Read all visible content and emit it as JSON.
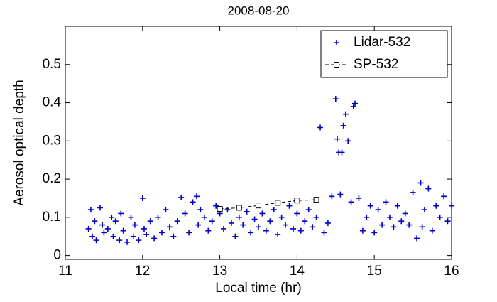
{
  "chart_data": {
    "type": "scatter",
    "title": "2008-08-20",
    "x_label": "Local time (hr)",
    "y_label": "Aerosol optical depth",
    "xlim": [
      11,
      16
    ],
    "ylim": [
      -0.01,
      0.6
    ],
    "xticks": [
      11,
      12,
      13,
      14,
      15,
      16
    ],
    "yticks": [
      0,
      0.1,
      0.2,
      0.3,
      0.4,
      0.5
    ],
    "legend": "northeast",
    "series": [
      {
        "name": "Lidar-532",
        "color": "#0000cc",
        "marker": "plus",
        "x": [
          11.3,
          11.33,
          11.35,
          11.38,
          11.4,
          11.45,
          11.48,
          11.5,
          11.55,
          11.6,
          11.62,
          11.65,
          11.7,
          11.72,
          11.75,
          11.8,
          11.85,
          11.88,
          11.9,
          11.95,
          12.0,
          12.02,
          12.05,
          12.1,
          12.15,
          12.2,
          12.25,
          12.3,
          12.35,
          12.4,
          12.45,
          12.5,
          12.55,
          12.6,
          12.65,
          12.7,
          12.72,
          12.75,
          12.8,
          12.85,
          12.9,
          12.95,
          13.0,
          13.05,
          13.1,
          13.15,
          13.2,
          13.25,
          13.3,
          13.35,
          13.4,
          13.45,
          13.5,
          13.55,
          13.6,
          13.65,
          13.7,
          13.75,
          13.8,
          13.85,
          13.9,
          13.95,
          14.0,
          14.05,
          14.1,
          14.15,
          14.2,
          14.25,
          14.3,
          14.35,
          14.4,
          14.45,
          14.5,
          14.52,
          14.54,
          14.56,
          14.58,
          14.6,
          14.63,
          14.66,
          14.7,
          14.73,
          14.75,
          14.8,
          14.85,
          14.9,
          14.95,
          15.0,
          15.05,
          15.1,
          15.15,
          15.2,
          15.25,
          15.3,
          15.35,
          15.4,
          15.45,
          15.5,
          15.55,
          15.6,
          15.62,
          15.65,
          15.7,
          15.75,
          15.8,
          15.85,
          15.9,
          15.95,
          16.0
        ],
        "values": [
          0.07,
          0.12,
          0.05,
          0.09,
          0.04,
          0.125,
          0.08,
          0.06,
          0.07,
          0.1,
          0.05,
          0.09,
          0.04,
          0.11,
          0.065,
          0.035,
          0.1,
          0.05,
          0.08,
          0.04,
          0.15,
          0.07,
          0.055,
          0.09,
          0.045,
          0.1,
          0.06,
          0.12,
          0.075,
          0.05,
          0.09,
          0.152,
          0.11,
          0.06,
          0.14,
          0.155,
          0.08,
          0.12,
          0.1,
          0.065,
          0.09,
          0.13,
          0.11,
          0.07,
          0.12,
          0.085,
          0.05,
          0.1,
          0.08,
          0.115,
          0.06,
          0.095,
          0.075,
          0.11,
          0.065,
          0.09,
          0.12,
          0.055,
          0.1,
          0.08,
          0.13,
          0.07,
          0.11,
          0.065,
          0.09,
          0.12,
          0.075,
          0.1,
          0.335,
          0.06,
          0.085,
          0.155,
          0.41,
          0.305,
          0.27,
          0.16,
          0.27,
          0.34,
          0.37,
          0.3,
          0.14,
          0.39,
          0.398,
          0.15,
          0.065,
          0.1,
          0.13,
          0.06,
          0.12,
          0.08,
          0.14,
          0.1,
          0.075,
          0.13,
          0.09,
          0.11,
          0.08,
          0.165,
          0.045,
          0.19,
          0.075,
          0.12,
          0.175,
          0.065,
          0.13,
          0.1,
          0.155,
          0.09,
          0.13
        ]
      },
      {
        "name": "SP-532",
        "color": "#000000",
        "marker": "square",
        "line": "dashed",
        "x": [
          13.0,
          13.25,
          13.5,
          13.75,
          14.0,
          14.25
        ],
        "values": [
          0.122,
          0.125,
          0.131,
          0.138,
          0.144,
          0.146
        ]
      }
    ]
  }
}
